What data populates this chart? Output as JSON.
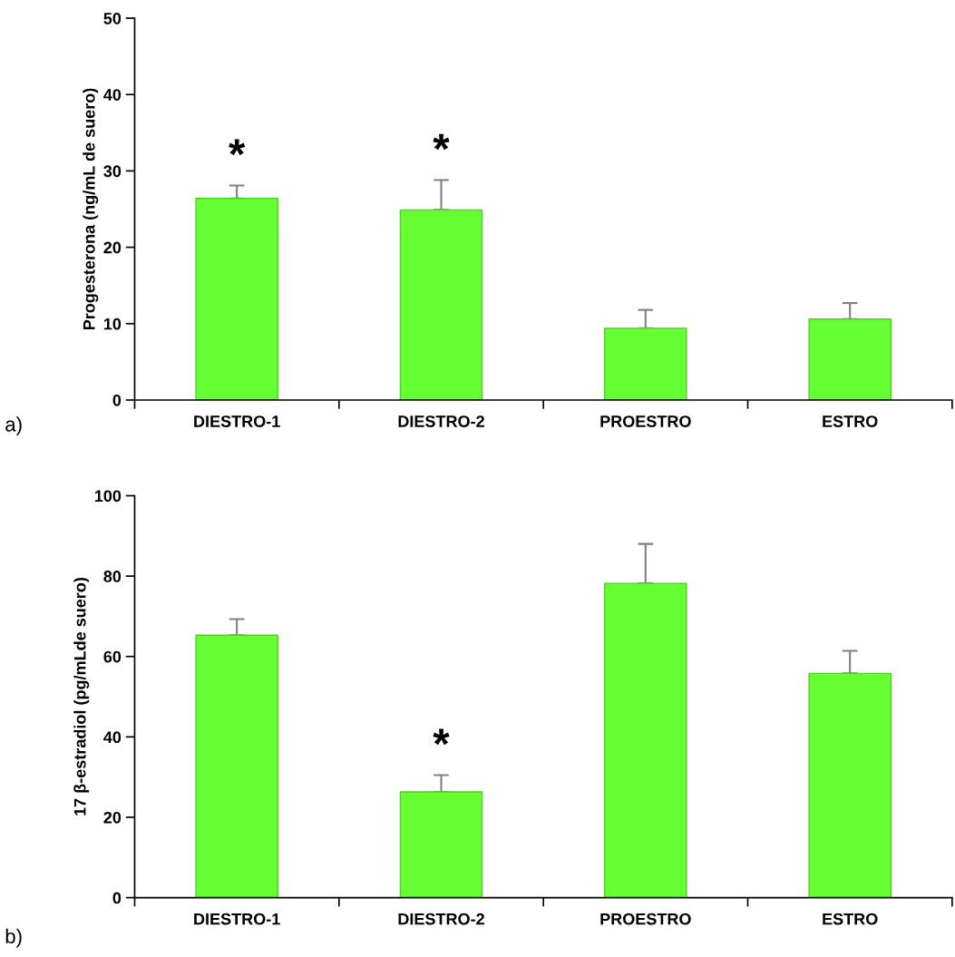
{
  "chart_data": [
    {
      "type": "bar",
      "ylabel": "Progesterona (ng/mL de suero)",
      "categories": [
        "DIESTRO-1",
        "DIESTRO-2",
        "PROESTRO",
        "ESTRO"
      ],
      "values": [
        26.4,
        24.9,
        9.4,
        10.6
      ],
      "errors": [
        [
          26.4,
          28.1
        ],
        [
          24.9,
          28.8
        ],
        [
          9.4,
          11.8
        ],
        [
          10.6,
          12.7
        ]
      ],
      "color": "#66ff33",
      "ylim": [
        0,
        50
      ],
      "yticks": [
        0,
        10,
        20,
        30,
        40,
        50
      ],
      "grid": false,
      "annotations": [
        {
          "text": "*",
          "x": "DIESTRO-1",
          "y": 28.1
        },
        {
          "text": "*",
          "x": "DIESTRO-2",
          "y": 28.8
        },
        "a)"
      ]
    },
    {
      "type": "bar",
      "ylabel": "17 β-estradiol (pg/mLde suero)",
      "categories": [
        "DIESTRO-1",
        "DIESTRO-2",
        "PROESTRO",
        "ESTRO"
      ],
      "values": [
        65.3,
        26.3,
        78.2,
        55.8
      ],
      "errors": [
        [
          65.3,
          69.3
        ],
        [
          26.3,
          30.5
        ],
        [
          78.2,
          88
        ],
        [
          55.8,
          61.4
        ]
      ],
      "color": "#66ff33",
      "ylim": [
        0,
        100
      ],
      "yticks": [
        0,
        20,
        40,
        60,
        80,
        100
      ],
      "grid": false,
      "annotations": [
        {
          "text": "*",
          "x": "DIESTRO-2",
          "y": 30.5
        },
        "b)"
      ]
    }
  ]
}
